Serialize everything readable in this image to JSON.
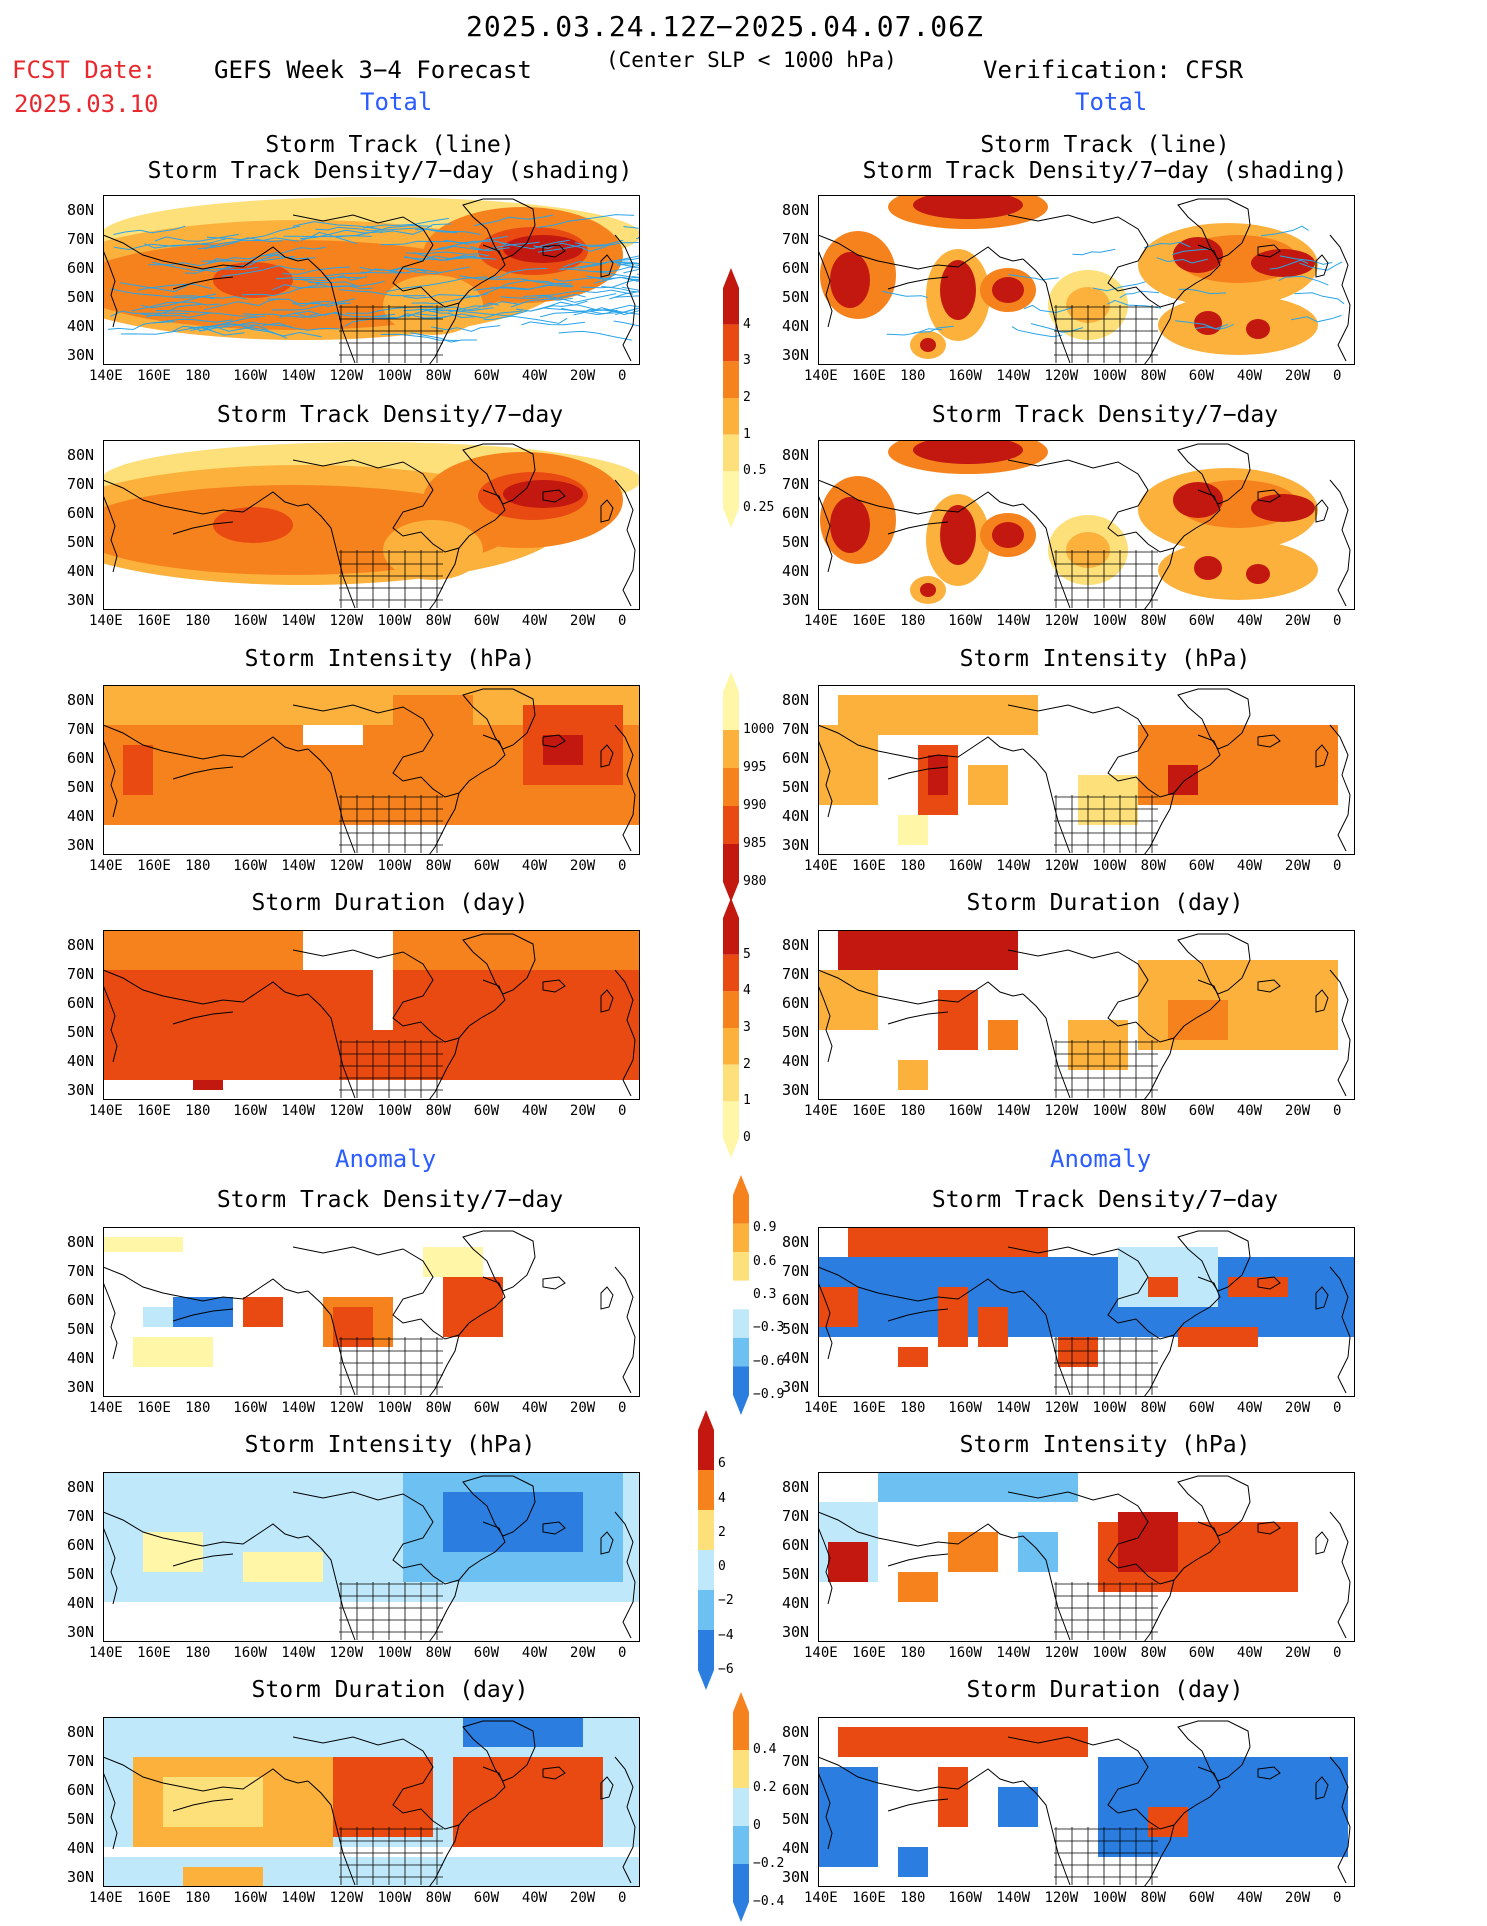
{
  "header": {
    "period": "2025.03.24.12Z−2025.04.07.06Z",
    "fcst_label": "FCST Date:",
    "fcst_date": "2025.03.10",
    "left_title": "GEFS Week 3−4 Forecast",
    "criteria": "(Center SLP < 1000 hPa)",
    "right_title": "Verification: CFSR"
  },
  "sections": {
    "total": "Total",
    "anomaly": "Anomaly"
  },
  "panel_titles": {
    "track_line": "Storm Track (line)",
    "track_line_sub": "Storm Track Density/7−day (shading)",
    "density": "Storm Track Density/7−day",
    "intensity": "Storm Intensity (hPa)",
    "duration": "Storm Duration (day)"
  },
  "lat_labels": [
    "80N",
    "70N",
    "60N",
    "50N",
    "40N",
    "30N"
  ],
  "lon_labels": [
    "140E",
    "160E",
    "180",
    "160W",
    "140W",
    "120W",
    "100W",
    "80W",
    "60W",
    "40W",
    "20W",
    "0"
  ],
  "colorbars": {
    "density_total": [
      "4",
      "3",
      "2",
      "1",
      "0.5",
      "0.25"
    ],
    "intensity_total": [
      "1000",
      "995",
      "990",
      "985",
      "980"
    ],
    "duration_total": [
      "5",
      "4",
      "3",
      "2",
      "1",
      "0"
    ],
    "density_anom": [
      "0.9",
      "0.6",
      "0.3",
      "−0.3",
      "−0.6",
      "−0.9"
    ],
    "intensity_anom": [
      "6",
      "4",
      "2",
      "0",
      "−2",
      "−4",
      "−6"
    ],
    "duration_anom": [
      "0.4",
      "0.2",
      "0",
      "−0.2",
      "−0.4"
    ]
  },
  "colors": {
    "land_outline": "#000000",
    "track_line": "#2aa4e8",
    "warm_1": "#fff6a8",
    "warm_2": "#fde07a",
    "warm_3": "#fbb13c",
    "warm_4": "#f6821e",
    "warm_5": "#e84a12",
    "warm_6": "#c21810",
    "cool_1": "#bfe9fb",
    "cool_2": "#6cc0f2",
    "cool_3": "#2b7ee0"
  }
}
